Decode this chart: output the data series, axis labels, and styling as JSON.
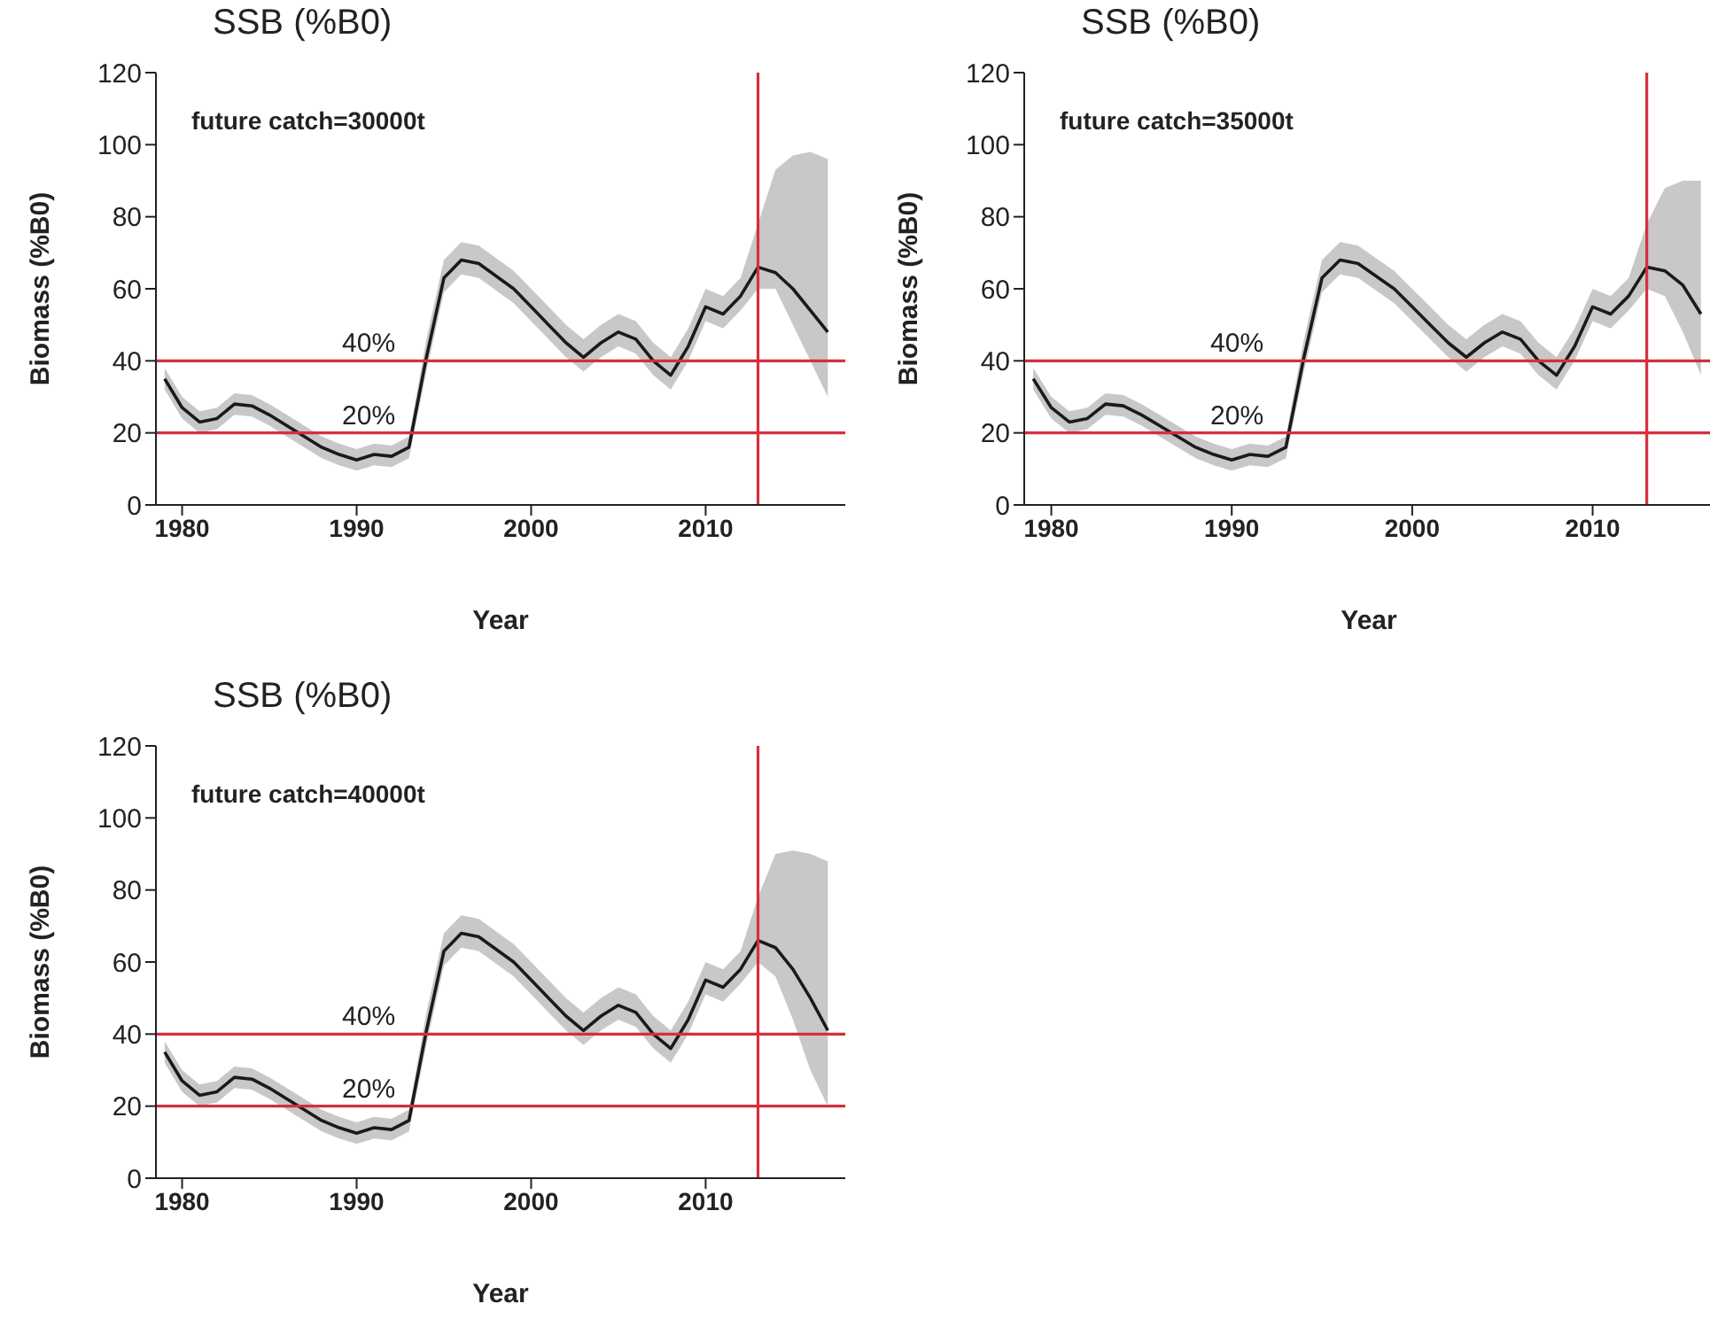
{
  "chart_data": [
    {
      "type": "line",
      "title": "SSB (%B0)",
      "xlabel": "Year",
      "ylabel": "Biomass (%B0)",
      "annotations": [
        "future catch=30000t"
      ],
      "xlim": [
        1978.5,
        2018
      ],
      "xticks": [
        1980,
        1990,
        2000,
        2010
      ],
      "ylim": [
        0,
        120
      ],
      "yticks": [
        0,
        20,
        40,
        60,
        80,
        100,
        120
      ],
      "grid": false,
      "legend": false,
      "marker": "none",
      "x": [
        1979,
        1980,
        1981,
        1982,
        1983,
        1984,
        1985,
        1986,
        1987,
        1988,
        1989,
        1990,
        1991,
        1992,
        1993,
        1994,
        1995,
        1996,
        1997,
        1998,
        1999,
        2000,
        2001,
        2002,
        2003,
        2004,
        2005,
        2006,
        2007,
        2008,
        2009,
        2010,
        2011,
        2012,
        2013,
        2014,
        2015,
        2016,
        2017
      ],
      "series": [
        {
          "color": "#1a1a1a",
          "values": [
            35,
            27,
            23,
            24,
            28,
            27.5,
            25,
            22,
            19,
            16,
            14,
            12.5,
            14,
            13.5,
            16,
            41,
            63,
            68,
            67,
            63.5,
            60,
            55,
            50,
            45,
            41,
            45,
            48,
            46,
            40,
            36,
            44,
            55,
            53,
            58,
            66,
            64.5,
            60,
            54,
            48
          ],
          "lower": [
            32,
            24,
            20,
            21,
            25,
            24.5,
            22,
            19,
            16,
            13,
            11,
            9.5,
            11,
            10.5,
            13,
            37,
            59,
            64,
            63,
            59.5,
            56,
            51,
            46,
            41,
            37,
            41,
            44,
            42,
            36,
            32,
            40,
            51,
            49,
            54,
            60,
            60,
            50,
            40,
            30
          ],
          "upper": [
            38,
            30,
            26,
            27,
            31,
            30.5,
            28,
            25,
            22,
            19,
            17,
            15.5,
            17,
            16.5,
            19,
            46,
            68,
            73,
            72,
            68.5,
            65,
            60,
            55,
            50,
            46,
            50,
            53,
            51,
            45,
            41,
            49,
            60,
            58,
            63,
            78,
            93,
            97,
            98,
            96
          ]
        }
      ],
      "ref_lines": [
        {
          "axis": "y",
          "value": 40,
          "label": "40%",
          "color": "#d42f3c"
        },
        {
          "axis": "y",
          "value": 20,
          "label": "20%",
          "color": "#d42f3c"
        },
        {
          "axis": "x",
          "value": 2013,
          "color": "#d42f3c"
        }
      ]
    },
    {
      "type": "line",
      "title": "SSB (%B0)",
      "xlabel": "Year",
      "ylabel": "Biomass (%B0)",
      "annotations": [
        "future catch=35000t"
      ],
      "xlim": [
        1978.5,
        2016.7
      ],
      "xticks": [
        1980,
        1990,
        2000,
        2010
      ],
      "ylim": [
        0,
        120
      ],
      "yticks": [
        0,
        20,
        40,
        60,
        80,
        100,
        120
      ],
      "grid": false,
      "legend": false,
      "marker": "none",
      "x": [
        1979,
        1980,
        1981,
        1982,
        1983,
        1984,
        1985,
        1986,
        1987,
        1988,
        1989,
        1990,
        1991,
        1992,
        1993,
        1994,
        1995,
        1996,
        1997,
        1998,
        1999,
        2000,
        2001,
        2002,
        2003,
        2004,
        2005,
        2006,
        2007,
        2008,
        2009,
        2010,
        2011,
        2012,
        2013,
        2014,
        2015,
        2016
      ],
      "series": [
        {
          "color": "#1a1a1a",
          "values": [
            35,
            27,
            23,
            24,
            28,
            27.5,
            25,
            22,
            19,
            16,
            14,
            12.5,
            14,
            13.5,
            16,
            41,
            63,
            68,
            67,
            63.5,
            60,
            55,
            50,
            45,
            41,
            45,
            48,
            46,
            40,
            36,
            44,
            55,
            53,
            58,
            66,
            65,
            61,
            53
          ],
          "lower": [
            32,
            24,
            20,
            21,
            25,
            24.5,
            22,
            19,
            16,
            13,
            11,
            9.5,
            11,
            10.5,
            13,
            37,
            59,
            64,
            63,
            59.5,
            56,
            51,
            46,
            41,
            37,
            41,
            44,
            42,
            36,
            32,
            40,
            51,
            49,
            54,
            60,
            58,
            48,
            36
          ],
          "upper": [
            38,
            30,
            26,
            27,
            31,
            30.5,
            28,
            25,
            22,
            19,
            17,
            15.5,
            17,
            16.5,
            19,
            46,
            68,
            73,
            72,
            68.5,
            65,
            60,
            55,
            50,
            46,
            50,
            53,
            51,
            45,
            41,
            49,
            60,
            58,
            63,
            78,
            88,
            90,
            90
          ]
        }
      ],
      "ref_lines": [
        {
          "axis": "y",
          "value": 40,
          "label": "40%",
          "color": "#d42f3c"
        },
        {
          "axis": "y",
          "value": 20,
          "label": "20%",
          "color": "#d42f3c"
        },
        {
          "axis": "x",
          "value": 2013,
          "color": "#d42f3c"
        }
      ]
    },
    {
      "type": "line",
      "title": "SSB (%B0)",
      "xlabel": "Year",
      "ylabel": "Biomass (%B0)",
      "annotations": [
        "future catch=40000t"
      ],
      "xlim": [
        1978.5,
        2018
      ],
      "xticks": [
        1980,
        1990,
        2000,
        2010
      ],
      "ylim": [
        0,
        120
      ],
      "yticks": [
        0,
        20,
        40,
        60,
        80,
        100,
        120
      ],
      "grid": false,
      "legend": false,
      "marker": "none",
      "x": [
        1979,
        1980,
        1981,
        1982,
        1983,
        1984,
        1985,
        1986,
        1987,
        1988,
        1989,
        1990,
        1991,
        1992,
        1993,
        1994,
        1995,
        1996,
        1997,
        1998,
        1999,
        2000,
        2001,
        2002,
        2003,
        2004,
        2005,
        2006,
        2007,
        2008,
        2009,
        2010,
        2011,
        2012,
        2013,
        2014,
        2015,
        2016,
        2017
      ],
      "series": [
        {
          "color": "#1a1a1a",
          "values": [
            35,
            27,
            23,
            24,
            28,
            27.5,
            25,
            22,
            19,
            16,
            14,
            12.5,
            14,
            13.5,
            16,
            41,
            63,
            68,
            67,
            63.5,
            60,
            55,
            50,
            45,
            41,
            45,
            48,
            46,
            40,
            36,
            44,
            55,
            53,
            58,
            66,
            64,
            58,
            50,
            41
          ],
          "lower": [
            32,
            24,
            20,
            21,
            25,
            24.5,
            22,
            19,
            16,
            13,
            11,
            9.5,
            11,
            10.5,
            13,
            37,
            59,
            64,
            63,
            59.5,
            56,
            51,
            46,
            41,
            37,
            41,
            44,
            42,
            36,
            32,
            40,
            51,
            49,
            54,
            60,
            56,
            44,
            30,
            20
          ],
          "upper": [
            38,
            30,
            26,
            27,
            31,
            30.5,
            28,
            25,
            22,
            19,
            17,
            15.5,
            17,
            16.5,
            19,
            46,
            68,
            73,
            72,
            68.5,
            65,
            60,
            55,
            50,
            46,
            50,
            53,
            51,
            45,
            41,
            49,
            60,
            58,
            63,
            78,
            90,
            91,
            90,
            88
          ]
        }
      ],
      "ref_lines": [
        {
          "axis": "y",
          "value": 40,
          "label": "40%",
          "color": "#d42f3c"
        },
        {
          "axis": "y",
          "value": 20,
          "label": "20%",
          "color": "#d42f3c"
        },
        {
          "axis": "x",
          "value": 2013,
          "color": "#d42f3c"
        }
      ]
    }
  ]
}
